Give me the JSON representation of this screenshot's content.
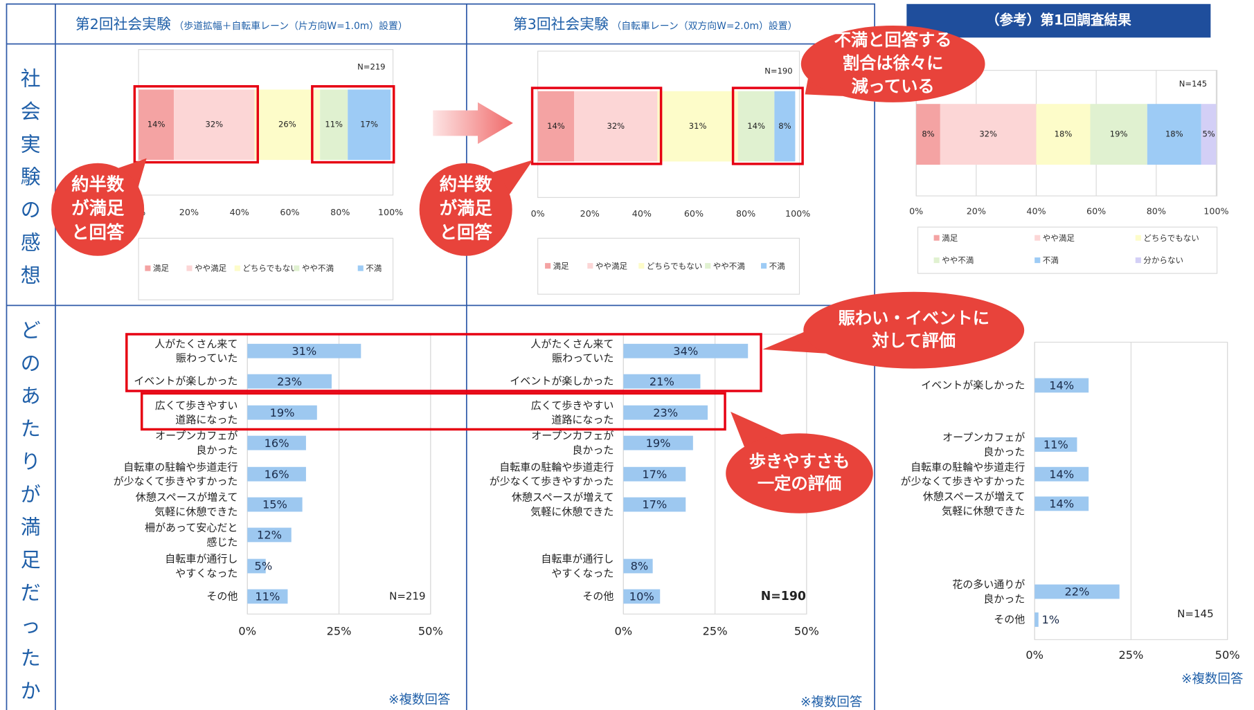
{
  "header": {
    "columns": [
      {
        "title": "第2回社会実験",
        "subtitle": "（歩道拡幅＋自転車レーン（片方向W=1.0m）設置）"
      },
      {
        "title": "第3回社会実験",
        "subtitle": "（自転車レーン（双方向W=2.0m）設置）"
      }
    ],
    "reference": "（参考）第1回調査結果"
  },
  "rows": [
    "社会実験の感想",
    "どのあたりが満足だったか"
  ],
  "callouts": [
    "約半数\nが満足\nと回答",
    "約半数\nが満足\nと回答",
    "不満と回答する\n割合は徐々に\n減っている",
    "賑わい・イベントに\n対して評価",
    "歩きやすさも\n一定の評価"
  ],
  "notes": [
    "※複数回答",
    "※複数回答",
    "※複数回答"
  ],
  "chart_data": [
    {
      "type": "stacked_bar",
      "annotation": "N=219",
      "grid": false,
      "xlim": [
        0,
        100
      ],
      "xticks": [
        {
          "value": 0,
          "label": "0%"
        },
        {
          "value": 20,
          "label": "20%"
        },
        {
          "value": 40,
          "label": "40%"
        },
        {
          "value": 60,
          "label": "60%"
        },
        {
          "value": 80,
          "label": "80%"
        },
        {
          "value": 100,
          "label": "100%"
        }
      ],
      "series": [
        {
          "name": "満足",
          "color": "#f4a3a3",
          "values": [
            14
          ],
          "value_labels": [
            "14%"
          ]
        },
        {
          "name": "やや満足",
          "color": "#fcd6d6",
          "values": [
            32
          ],
          "value_labels": [
            "32%"
          ]
        },
        {
          "name": "どちらでもない",
          "color": "#fdfcc9",
          "values": [
            26
          ],
          "value_labels": [
            "26%"
          ]
        },
        {
          "name": "やや不満",
          "color": "#e0f1d0",
          "values": [
            11
          ],
          "value_labels": [
            "11%"
          ]
        },
        {
          "name": "不満",
          "color": "#9dcbf5",
          "values": [
            17
          ],
          "value_labels": [
            "17%"
          ]
        }
      ]
    },
    {
      "type": "stacked_bar",
      "annotation": "N=190",
      "grid": false,
      "xlim": [
        0,
        100
      ],
      "xticks": [
        {
          "value": 0,
          "label": "0%"
        },
        {
          "value": 20,
          "label": "20%"
        },
        {
          "value": 40,
          "label": "40%"
        },
        {
          "value": 60,
          "label": "60%"
        },
        {
          "value": 80,
          "label": "80%"
        },
        {
          "value": 100,
          "label": "100%"
        }
      ],
      "series": [
        {
          "name": "満足",
          "color": "#f4a3a3",
          "values": [
            14
          ],
          "value_labels": [
            "14%"
          ]
        },
        {
          "name": "やや満足",
          "color": "#fcd6d6",
          "values": [
            32
          ],
          "value_labels": [
            "32%"
          ]
        },
        {
          "name": "どちらでもない",
          "color": "#fdfcc9",
          "values": [
            31
          ],
          "value_labels": [
            "31%"
          ]
        },
        {
          "name": "やや不満",
          "color": "#e0f1d0",
          "values": [
            14
          ],
          "value_labels": [
            "14%"
          ]
        },
        {
          "name": "不満",
          "color": "#9dcbf5",
          "values": [
            8
          ],
          "value_labels": [
            "8%"
          ]
        }
      ]
    },
    {
      "type": "stacked_bar",
      "annotation": "N=145",
      "grid": true,
      "xlim": [
        0,
        100
      ],
      "xticks": [
        {
          "value": 0,
          "label": "0%"
        },
        {
          "value": 20,
          "label": "20%"
        },
        {
          "value": 40,
          "label": "40%"
        },
        {
          "value": 60,
          "label": "60%"
        },
        {
          "value": 80,
          "label": "80%"
        },
        {
          "value": 100,
          "label": "100%"
        }
      ],
      "series": [
        {
          "name": "満足",
          "color": "#f4a3a3",
          "values": [
            8
          ],
          "value_labels": [
            "8%"
          ]
        },
        {
          "name": "やや満足",
          "color": "#fcd6d6",
          "values": [
            32
          ],
          "value_labels": [
            "32%"
          ]
        },
        {
          "name": "どちらでもない",
          "color": "#fdfcc9",
          "values": [
            18
          ],
          "value_labels": [
            "18%"
          ]
        },
        {
          "name": "やや不満",
          "color": "#e0f1d0",
          "values": [
            19
          ],
          "value_labels": [
            "19%"
          ]
        },
        {
          "name": "不満",
          "color": "#9dcbf5",
          "values": [
            18
          ],
          "value_labels": [
            "18%"
          ]
        },
        {
          "name": "分からない",
          "color": "#d3cff6",
          "values": [
            5
          ],
          "value_labels": [
            "5%"
          ]
        }
      ]
    },
    {
      "type": "hbar",
      "annotation": "N=219",
      "grid": true,
      "color": "#9dc8f0",
      "xlim": [
        0,
        50
      ],
      "xticks": [
        {
          "value": 0,
          "label": "0%"
        },
        {
          "value": 25,
          "label": "25%"
        },
        {
          "value": 50,
          "label": "50%"
        }
      ],
      "categories": [
        "人がたくさん来て\n賑わっていた",
        "イベントが楽しかった",
        "広くて歩きやすい\n道路になった",
        "オープンカフェが\n良かった",
        "自転車の駐輪や歩道走行\nが少なくて歩きやすかった",
        "休憩スペースが増えて\n気軽に休憩できた",
        "柵があって安心だと\n感じた",
        "自転車が通行し\nやすくなった",
        "その他"
      ],
      "values": [
        31,
        23,
        19,
        16,
        16,
        15,
        12,
        5,
        11
      ],
      "value_labels": [
        "31%",
        "23%",
        "19%",
        "16%",
        "16%",
        "15%",
        "12%",
        "5%",
        "11%"
      ]
    },
    {
      "type": "hbar",
      "annotation": "N=190",
      "grid": true,
      "color": "#9dc8f0",
      "xlim": [
        0,
        50
      ],
      "xticks": [
        {
          "value": 0,
          "label": "0%"
        },
        {
          "value": 25,
          "label": "25%"
        },
        {
          "value": 50,
          "label": "50%"
        }
      ],
      "categories": [
        "人がたくさん来て\n賑わっていた",
        "イベントが楽しかった",
        "広くて歩きやすい\n道路になった",
        "オープンカフェが\n良かった",
        "自転車の駐輪や歩道走行\nが少なくて歩きやすかった",
        "休憩スペースが増えて\n気軽に休憩できた",
        null,
        "自転車が通行し\nやすくなった",
        "その他"
      ],
      "values": [
        34,
        21,
        23,
        19,
        17,
        17,
        null,
        8,
        10
      ],
      "value_labels": [
        "34%",
        "21%",
        "23%",
        "19%",
        "17%",
        "17%",
        null,
        "8%",
        "10%"
      ]
    },
    {
      "type": "hbar",
      "annotation": "N=145",
      "grid": true,
      "color": "#9dc8f0",
      "xlim": [
        0,
        50
      ],
      "xticks": [
        {
          "value": 0,
          "label": "0%"
        },
        {
          "value": 25,
          "label": "25%"
        },
        {
          "value": 50,
          "label": "50%"
        }
      ],
      "categories": [
        null,
        "イベントが楽しかった",
        null,
        "オープンカフェが\n良かった",
        "自転車の駐輪や歩道走行\nが少なくて歩きやすかった",
        "休憩スペースが増えて\n気軽に休憩できた",
        null,
        null,
        "花の多い通りが\n良かった",
        "その他"
      ],
      "values": [
        null,
        14,
        null,
        11,
        14,
        14,
        null,
        null,
        22,
        1
      ],
      "value_labels": [
        null,
        "14%",
        null,
        "11%",
        "14%",
        "14%",
        null,
        null,
        "22%",
        "1%"
      ]
    }
  ]
}
